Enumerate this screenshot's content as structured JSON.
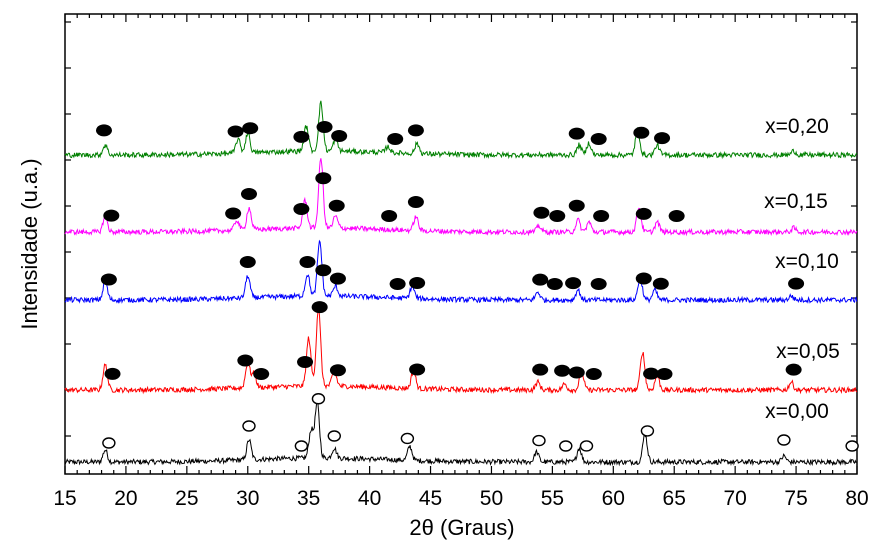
{
  "chart_data": {
    "type": "line",
    "xlabel": "2θ (Graus)",
    "ylabel": "Intensidade (u.a.)",
    "xlim": [
      15,
      80
    ],
    "xticks": [
      "15",
      "20",
      "25",
      "30",
      "35",
      "40",
      "45",
      "50",
      "55",
      "60",
      "65",
      "70",
      "75",
      "80"
    ],
    "grid": false,
    "colors": {
      "x000": "#000000",
      "x005": "#ff0000",
      "x010": "#0000ff",
      "x015": "#ff00ff",
      "x020": "#008000"
    },
    "series": [
      {
        "name": "x=0,00",
        "key": "x000",
        "baseline": 0,
        "peaks": [
          [
            18.3,
            12
          ],
          [
            30.1,
            20
          ],
          [
            35.2,
            28
          ],
          [
            35.7,
            55
          ],
          [
            37.1,
            10
          ],
          [
            43.3,
            14
          ],
          [
            53.7,
            10
          ],
          [
            57.2,
            14
          ],
          [
            62.6,
            28
          ],
          [
            74.0,
            6
          ]
        ],
        "markers": {
          "symbol": "open-circle",
          "x": [
            18.6,
            30.1,
            34.4,
            35.8,
            37.1,
            43.1,
            53.9,
            56.1,
            57.8,
            62.8,
            74.0,
            79.6
          ]
        }
      },
      {
        "name": "x=0,05",
        "key": "x005",
        "baseline": 1,
        "peaks": [
          [
            18.3,
            25
          ],
          [
            30.0,
            25
          ],
          [
            30.5,
            14
          ],
          [
            35.0,
            48
          ],
          [
            35.8,
            78
          ],
          [
            37.1,
            15
          ],
          [
            43.6,
            18
          ],
          [
            53.8,
            8
          ],
          [
            56.0,
            6
          ],
          [
            57.4,
            18
          ],
          [
            62.4,
            38
          ],
          [
            63.6,
            14
          ],
          [
            74.6,
            8
          ]
        ],
        "markers": {
          "symbol": "filled-circle",
          "x": [
            18.9,
            29.8,
            31.1,
            34.7,
            35.9,
            37.4,
            43.9,
            54.0,
            55.8,
            57.0,
            58.4,
            63.1,
            64.2,
            74.8
          ]
        }
      },
      {
        "name": "x=0,10",
        "key": "x010",
        "baseline": 2,
        "peaks": [
          [
            18.3,
            18
          ],
          [
            30.0,
            22
          ],
          [
            34.9,
            22
          ],
          [
            35.9,
            55
          ],
          [
            37.2,
            10
          ],
          [
            43.5,
            12
          ],
          [
            53.8,
            8
          ],
          [
            57.1,
            10
          ],
          [
            62.2,
            22
          ],
          [
            63.4,
            10
          ],
          [
            74.6,
            4
          ]
        ],
        "markers": {
          "symbol": "filled-circle",
          "x": [
            18.6,
            30.0,
            34.9,
            36.2,
            37.4,
            42.3,
            43.9,
            54.0,
            55.2,
            56.7,
            58.8,
            62.5,
            63.9,
            75.0
          ]
        }
      },
      {
        "name": "x=0,15",
        "key": "x015",
        "baseline": 3,
        "peaks": [
          [
            18.3,
            16
          ],
          [
            29.1,
            10
          ],
          [
            30.1,
            22
          ],
          [
            34.7,
            28
          ],
          [
            36.0,
            70
          ],
          [
            37.2,
            12
          ],
          [
            43.8,
            14
          ],
          [
            53.9,
            6
          ],
          [
            57.1,
            12
          ],
          [
            58.0,
            10
          ],
          [
            62.1,
            25
          ],
          [
            63.6,
            10
          ],
          [
            74.8,
            4
          ]
        ],
        "markers": {
          "symbol": "filled-circle",
          "x": [
            18.8,
            28.8,
            30.1,
            34.4,
            36.2,
            37.3,
            41.6,
            43.8,
            54.1,
            55.4,
            57.0,
            59.0,
            62.5,
            65.2
          ]
        }
      },
      {
        "name": "x=0,20",
        "key": "x020",
        "baseline": 4,
        "peaks": [
          [
            18.3,
            10
          ],
          [
            29.2,
            14
          ],
          [
            30.0,
            20
          ],
          [
            34.8,
            25
          ],
          [
            36.0,
            48
          ],
          [
            37.2,
            12
          ],
          [
            41.5,
            6
          ],
          [
            43.9,
            10
          ],
          [
            57.2,
            10
          ],
          [
            58.0,
            12
          ],
          [
            62.0,
            25
          ],
          [
            63.6,
            10
          ],
          [
            74.8,
            4
          ]
        ],
        "markers": {
          "symbol": "filled-circle",
          "x": [
            18.2,
            29.0,
            30.2,
            34.4,
            36.3,
            37.5,
            42.1,
            43.8,
            57.0,
            58.8,
            62.3,
            64.0
          ]
        }
      }
    ]
  }
}
